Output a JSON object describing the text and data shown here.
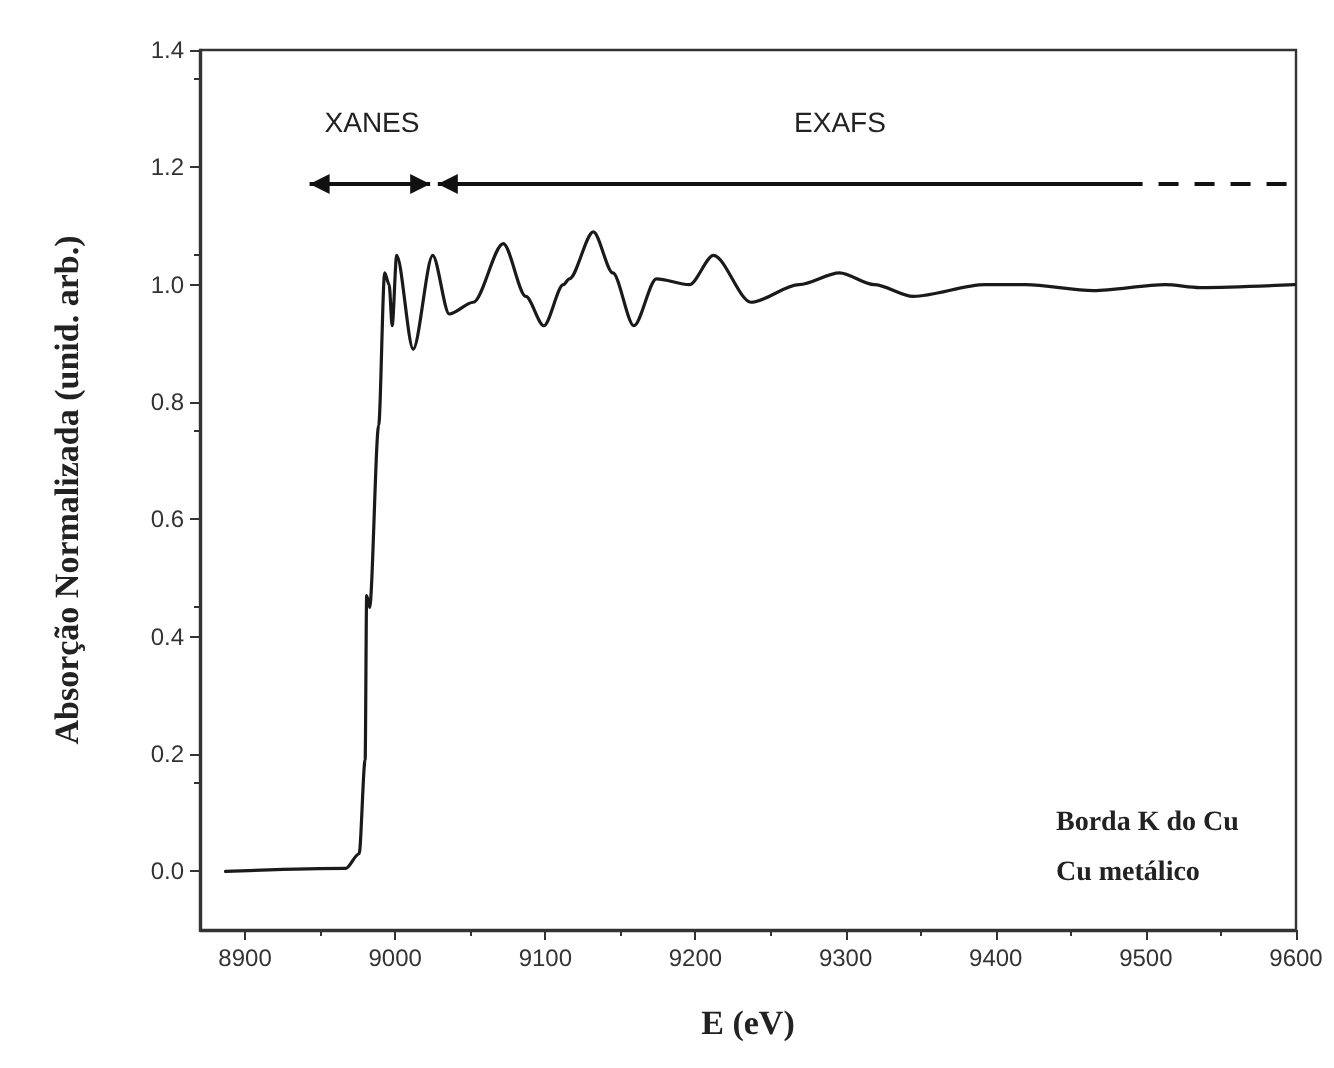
{
  "chart_data": {
    "type": "line",
    "xlabel": "E (eV)",
    "ylabel": "Absorção Normalizada (unid. arb.)",
    "series": [
      {
        "color": "#1a1a1a",
        "x": [
          8887,
          8967,
          8976,
          8980,
          8981,
          8983,
          8989,
          8993,
          8996,
          8998,
          9001,
          9012,
          9025,
          9036,
          9052,
          9072,
          9087,
          9099,
          9112,
          9116,
          9132,
          9145,
          9159,
          9174,
          9196,
          9212,
          9237,
          9269,
          9296,
          9319,
          9345,
          9393,
          9420,
          9465,
          9513,
          9536,
          9599
        ],
        "values": [
          0.0,
          0.005,
          0.03,
          0.19,
          0.47,
          0.45,
          0.76,
          1.02,
          1.0,
          0.93,
          1.05,
          0.89,
          1.05,
          0.95,
          0.97,
          1.07,
          0.98,
          0.93,
          1.0,
          1.01,
          1.09,
          1.02,
          0.93,
          1.01,
          1.0,
          1.05,
          0.97,
          1.0,
          1.02,
          1.0,
          0.98,
          1.0,
          1.0,
          0.99,
          1.0,
          0.995,
          1.0
        ]
      }
    ],
    "xlim": [
      8870,
      9600
    ],
    "xticks": [
      8900,
      9000,
      9100,
      9200,
      9300,
      9400,
      9500,
      9600
    ],
    "ylim": [
      -0.1,
      1.4
    ],
    "yticks": [
      {
        "value": 0,
        "label": "0.0"
      },
      0.2,
      0.4,
      0.6,
      0.8,
      {
        "value": 1,
        "label": "1.0"
      },
      1.2,
      1.4
    ],
    "marker": "none",
    "line_style": "solid",
    "annotations": [
      "XANES",
      "EXAFS",
      "Borda K do Cu",
      "Cu metálico"
    ]
  }
}
